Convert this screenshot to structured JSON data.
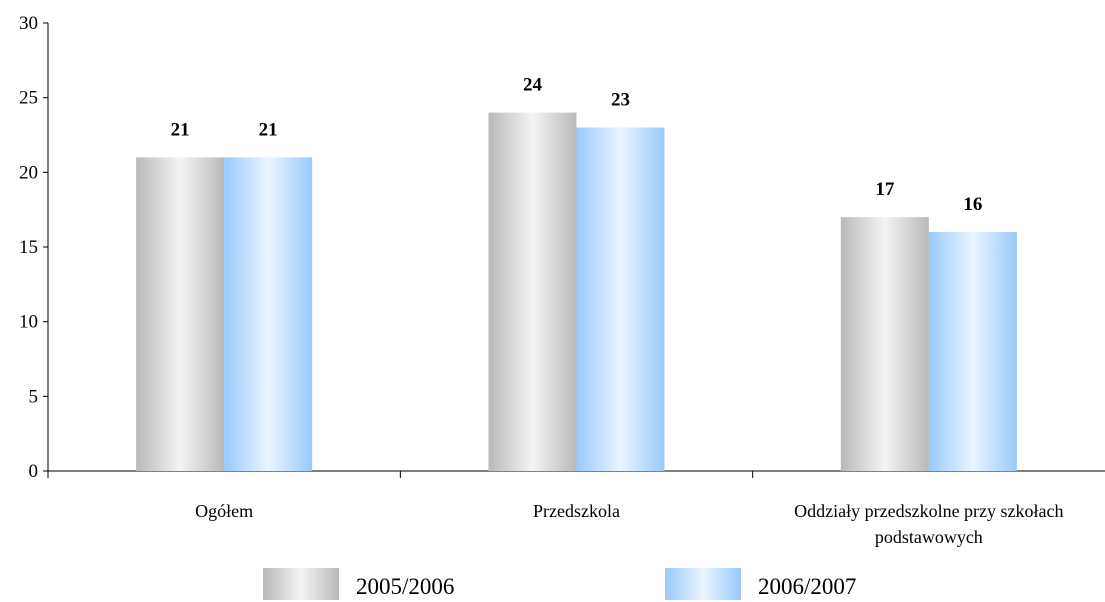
{
  "chart_data": {
    "type": "bar",
    "title": "",
    "xlabel": "",
    "ylabel": "",
    "categories": [
      "Ogółem",
      "Przedszkola",
      "Oddziały przedszkolne przy szkołach podstawowych"
    ],
    "series": [
      {
        "name": "2005/2006",
        "values": [
          21,
          24,
          17
        ],
        "color": "#c8c8c8"
      },
      {
        "name": "2006/2007",
        "values": [
          21,
          23,
          16
        ],
        "color": "#a9d3ff"
      }
    ],
    "ylim": [
      0,
      30
    ],
    "yticks": [
      0,
      5,
      10,
      15,
      20,
      25,
      30
    ],
    "grid": false,
    "legend_position": "bottom",
    "data_labels": true
  }
}
